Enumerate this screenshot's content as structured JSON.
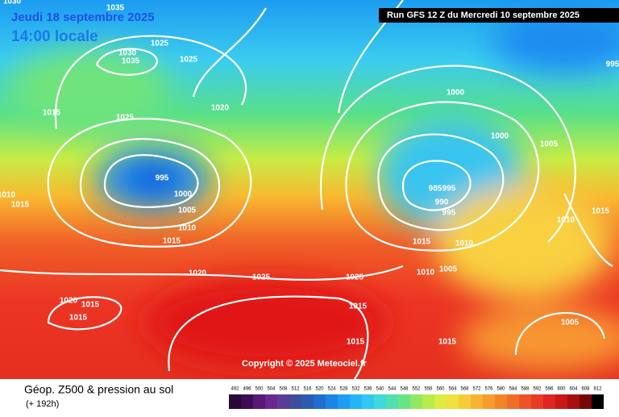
{
  "header": {
    "date": "Jeudi 18 septembre 2025",
    "time": "14:00 locale",
    "run": "Run GFS 12 Z du Mercredi 10 septembre 2025"
  },
  "copyright": "Copyright © 2025 Meteociel.fr",
  "footer": {
    "title": "Géop. Z500 & pression au sol",
    "lead": "(+ 192h)"
  },
  "isobar_labels": [
    "1030",
    "1035",
    "1030",
    "1035",
    "1025",
    "1025",
    "1015",
    "1025",
    "1020",
    "995",
    "1000",
    "1005",
    "1010",
    "1015",
    "1020",
    "1025",
    "1025",
    "1020",
    "1015",
    "1015",
    "1015",
    "1015",
    "1015",
    "1015",
    "1010",
    "1010",
    "1005",
    "1000",
    "1000",
    "1005",
    "985",
    "995",
    "990",
    "995",
    "1010",
    "1015",
    "1005",
    "1010",
    "1015",
    "995"
  ],
  "legend": {
    "values": [
      492,
      496,
      500,
      504,
      508,
      512,
      516,
      520,
      524,
      528,
      532,
      536,
      540,
      544,
      548,
      552,
      556,
      560,
      564,
      568,
      572,
      576,
      580,
      584,
      588,
      592,
      596,
      600,
      604,
      608,
      612
    ],
    "colors": [
      "#2a0838",
      "#3e0c56",
      "#571876",
      "#6c2692",
      "#5a3c98",
      "#3c4e9c",
      "#2c5cb0",
      "#1f6ed0",
      "#1c84e8",
      "#1e9cf4",
      "#24b4f8",
      "#30c8f0",
      "#40d8d8",
      "#50e0b0",
      "#68e488",
      "#90e860",
      "#b8ec48",
      "#dcec40",
      "#f0e040",
      "#f8cc38",
      "#f8b430",
      "#f89c2c",
      "#f48428",
      "#f06c28",
      "#ec5428",
      "#e83c24",
      "#e02420",
      "#c81818",
      "#a81010",
      "#780808",
      "#000000"
    ]
  }
}
